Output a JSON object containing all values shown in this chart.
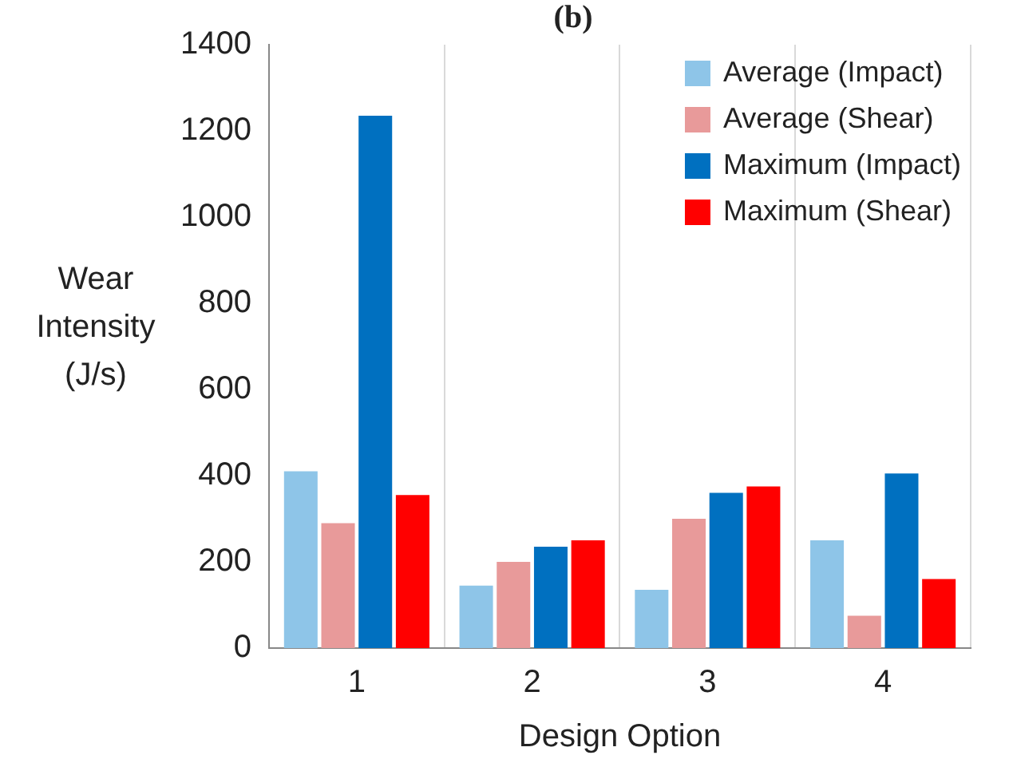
{
  "chart_data": {
    "type": "bar",
    "title": "(b)",
    "xlabel": "Design Option",
    "ylabel": "Wear Intensity (J/s)",
    "categories": [
      "1",
      "2",
      "3",
      "4"
    ],
    "series": [
      {
        "name": "Average (Impact)",
        "color": "#8ec5e8",
        "values": [
          410,
          145,
          135,
          250
        ]
      },
      {
        "name": "Average (Shear)",
        "color": "#e89a9a",
        "values": [
          290,
          200,
          300,
          75
        ]
      },
      {
        "name": "Maximum (Impact)",
        "color": "#0070c0",
        "values": [
          1235,
          235,
          360,
          405
        ]
      },
      {
        "name": "Maximum (Shear)",
        "color": "#ff0000",
        "values": [
          355,
          250,
          375,
          160
        ]
      }
    ],
    "ylim": [
      0,
      1400
    ],
    "yticks": [
      0,
      200,
      400,
      600,
      800,
      1000,
      1200,
      1400
    ],
    "grid": "x",
    "legend": "top right"
  }
}
